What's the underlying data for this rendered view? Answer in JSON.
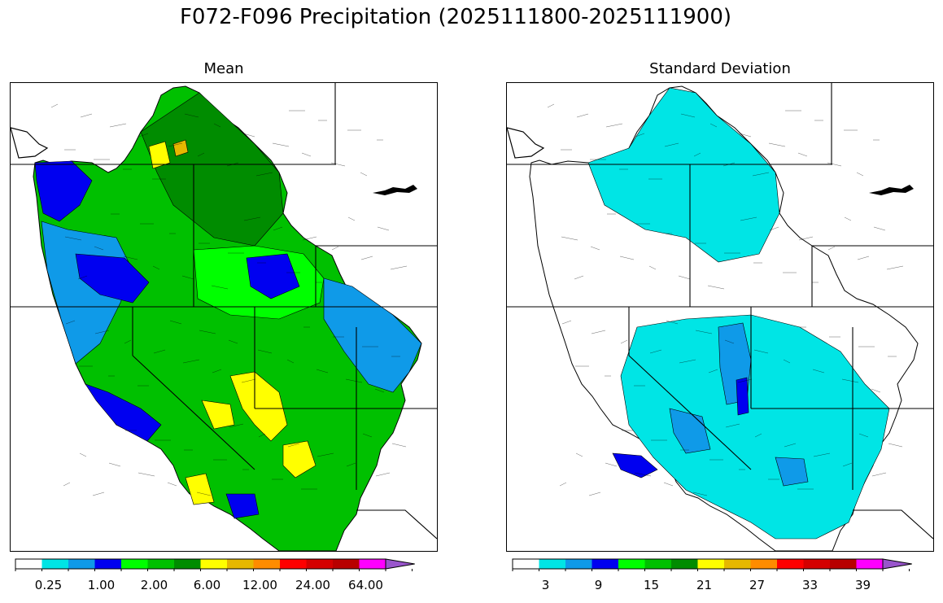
{
  "title": "F072-F096 Precipitation (2025111800-2025111900)",
  "colors": [
    "#ffffff",
    "#00e5e5",
    "#0f9ae8",
    "#0000f0",
    "#00ff00",
    "#00c000",
    "#008c00",
    "#ffff00",
    "#e6b800",
    "#ff8c00",
    "#ff0000",
    "#d40000",
    "#b80000",
    "#ff00ff",
    "#9955cc"
  ],
  "chart_data": [
    {
      "type": "map",
      "title": "Mean",
      "colorbar": {
        "tick_labels": [
          "0.25",
          "1.00",
          "2.00",
          "6.00",
          "12.00",
          "24.00",
          "64.00"
        ],
        "tick_bins": [
          1,
          3,
          5,
          7,
          9,
          11,
          13
        ],
        "extend": "max"
      },
      "region_colors": {
        "coast_northwest": "#0000f0",
        "coast_oregon": "#0f9ae8",
        "interior_basin": "#00c000",
        "rockies_north": "#008c00",
        "central_high": "#00ff00",
        "southwest_peaks": "#ffff00",
        "north_peak": "#e6b800",
        "east_edge": "#0f9ae8",
        "southern_coast": "#0000f0"
      }
    },
    {
      "type": "map",
      "title": "Standard Deviation",
      "colorbar": {
        "tick_labels": [
          "3",
          "9",
          "15",
          "21",
          "27",
          "33",
          "39"
        ],
        "tick_bins": [
          1,
          3,
          5,
          7,
          9,
          11,
          13
        ],
        "extend": "max"
      },
      "region_colors": {
        "coast_west": "#ffffff",
        "north_interior": "#00e5e5",
        "central_basin": "#00e5e5",
        "utah_core": "#0f9ae8",
        "utah_peak": "#0000f0",
        "southern_coast": "#0000f0",
        "southeast_basins": "#0f9ae8"
      }
    }
  ]
}
